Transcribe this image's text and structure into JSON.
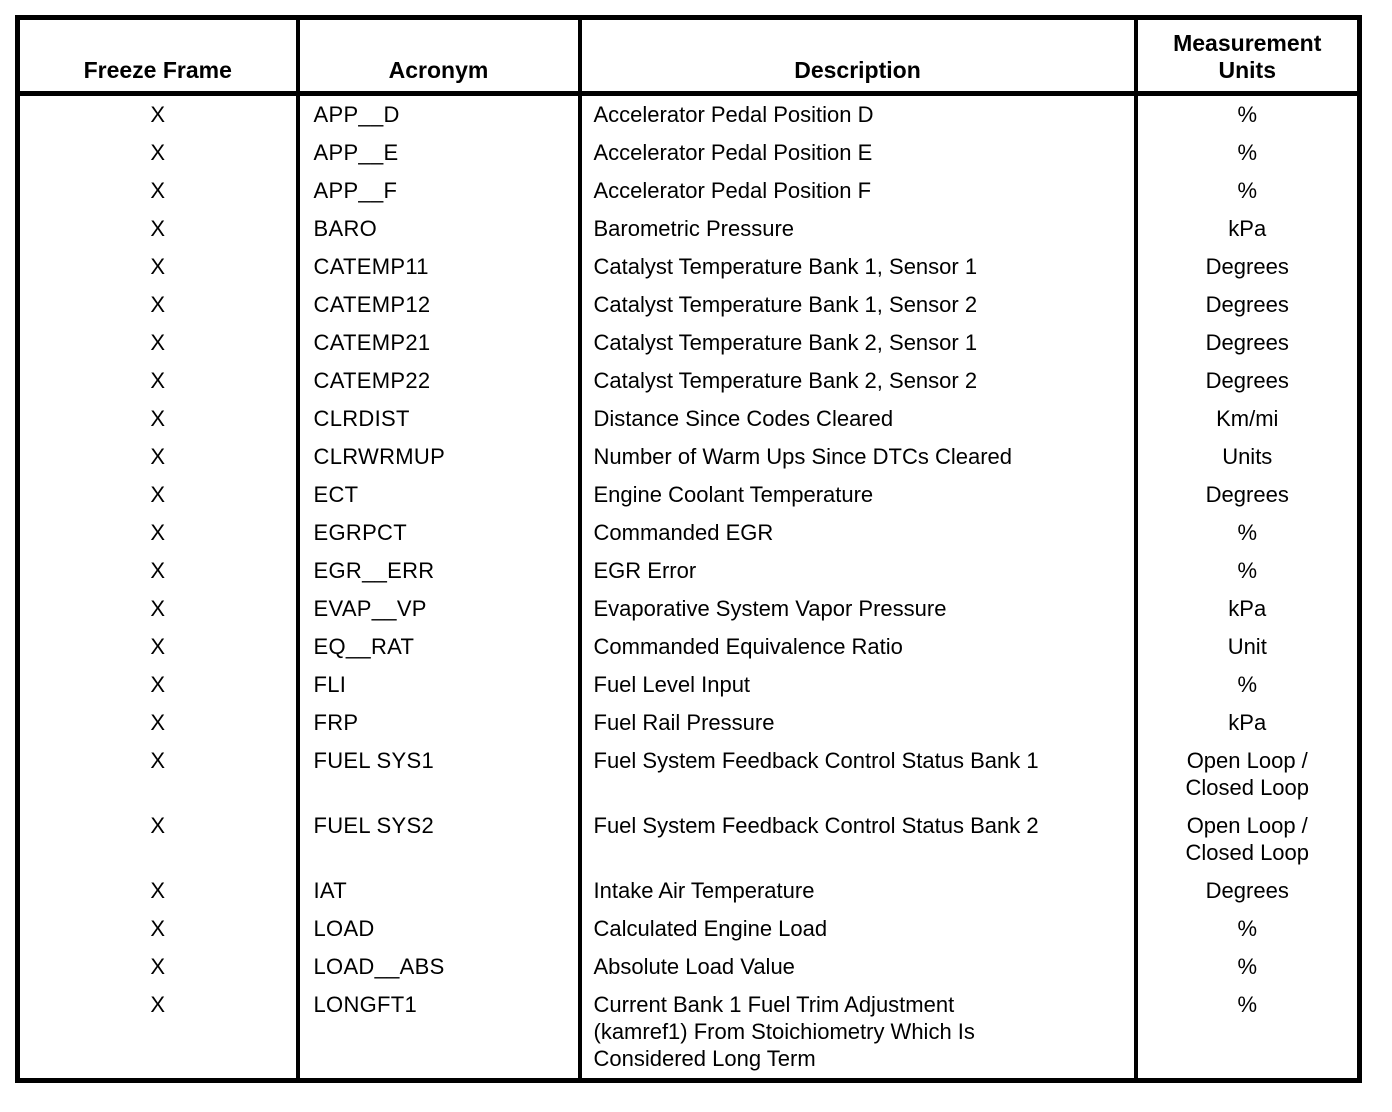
{
  "colors": {
    "background": "#ffffff",
    "border": "#000000",
    "text": "#000000"
  },
  "table": {
    "headers": [
      "Freeze Frame",
      "Acronym",
      "Description",
      "Measurement\nUnits"
    ],
    "rows": [
      {
        "freeze_frame": "X",
        "acronym": "APP__D",
        "description": "Accelerator Pedal Position D",
        "units": "%"
      },
      {
        "freeze_frame": "X",
        "acronym": "APP__E",
        "description": "Accelerator Pedal Position E",
        "units": "%"
      },
      {
        "freeze_frame": "X",
        "acronym": "APP__F",
        "description": "Accelerator Pedal Position F",
        "units": "%"
      },
      {
        "freeze_frame": "X",
        "acronym": "BARO",
        "description": "Barometric Pressure",
        "units": "kPa"
      },
      {
        "freeze_frame": "X",
        "acronym": "CATEMP11",
        "description": "Catalyst Temperature Bank 1, Sensor 1",
        "units": "Degrees"
      },
      {
        "freeze_frame": "X",
        "acronym": "CATEMP12",
        "description": "Catalyst Temperature Bank 1, Sensor 2",
        "units": "Degrees"
      },
      {
        "freeze_frame": "X",
        "acronym": "CATEMP21",
        "description": "Catalyst Temperature Bank 2, Sensor 1",
        "units": "Degrees"
      },
      {
        "freeze_frame": "X",
        "acronym": "CATEMP22",
        "description": "Catalyst Temperature Bank 2, Sensor 2",
        "units": "Degrees"
      },
      {
        "freeze_frame": "X",
        "acronym": "CLRDIST",
        "description": "Distance Since Codes Cleared",
        "units": "Km/mi"
      },
      {
        "freeze_frame": "X",
        "acronym": "CLRWRMUP",
        "description": "Number of Warm Ups Since DTCs Cleared",
        "units": "Units"
      },
      {
        "freeze_frame": "X",
        "acronym": "ECT",
        "description": "Engine Coolant Temperature",
        "units": "Degrees"
      },
      {
        "freeze_frame": "X",
        "acronym": "EGRPCT",
        "description": "Commanded EGR",
        "units": "%"
      },
      {
        "freeze_frame": "X",
        "acronym": "EGR__ERR",
        "description": "EGR Error",
        "units": "%"
      },
      {
        "freeze_frame": "X",
        "acronym": "EVAP__VP",
        "description": "Evaporative System Vapor Pressure",
        "units": "kPa"
      },
      {
        "freeze_frame": "X",
        "acronym": "EQ__RAT",
        "description": "Commanded Equivalence Ratio",
        "units": "Unit"
      },
      {
        "freeze_frame": "X",
        "acronym": "FLI",
        "description": "Fuel Level Input",
        "units": "%"
      },
      {
        "freeze_frame": "X",
        "acronym": "FRP",
        "description": "Fuel Rail Pressure",
        "units": "kPa"
      },
      {
        "freeze_frame": "X",
        "acronym": "FUEL SYS1",
        "description": "Fuel System Feedback Control Status Bank 1",
        "units": "Open Loop /\nClosed Loop"
      },
      {
        "freeze_frame": "X",
        "acronym": "FUEL SYS2",
        "description": "Fuel System Feedback Control Status Bank 2",
        "units": "Open Loop /\nClosed Loop"
      },
      {
        "freeze_frame": "X",
        "acronym": "IAT",
        "description": "Intake Air Temperature",
        "units": "Degrees"
      },
      {
        "freeze_frame": "X",
        "acronym": "LOAD",
        "description": "Calculated Engine Load",
        "units": "%"
      },
      {
        "freeze_frame": "X",
        "acronym": "LOAD__ABS",
        "description": "Absolute Load Value",
        "units": "%"
      },
      {
        "freeze_frame": "X",
        "acronym": "LONGFT1",
        "description": "Current Bank 1 Fuel Trim Adjustment\n(kamref1) From Stoichiometry Which Is\nConsidered Long Term",
        "units": "%"
      }
    ]
  }
}
